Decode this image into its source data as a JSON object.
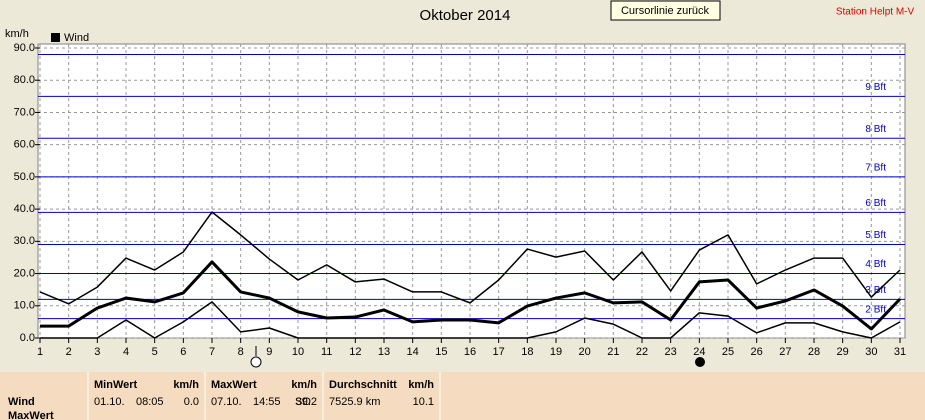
{
  "chart_data": {
    "type": "line",
    "title": "Oktober 2014",
    "button": "Cursorlinie zurück",
    "station": "Station Helpt M-V",
    "y_label": "km/h",
    "x": [
      1,
      2,
      3,
      4,
      5,
      6,
      7,
      8,
      9,
      10,
      11,
      12,
      13,
      14,
      15,
      16,
      17,
      18,
      19,
      20,
      21,
      22,
      23,
      24,
      25,
      26,
      27,
      28,
      29,
      30,
      31
    ],
    "xlim": [
      1,
      31
    ],
    "xticks": [
      1,
      2,
      3,
      4,
      5,
      6,
      7,
      8,
      9,
      10,
      11,
      12,
      13,
      14,
      15,
      16,
      17,
      18,
      19,
      20,
      21,
      22,
      23,
      24,
      25,
      26,
      27,
      28,
      29,
      30,
      31
    ],
    "ylim": [
      0,
      90
    ],
    "yticks": [
      {
        "value": 0,
        "label": "0.0"
      },
      {
        "value": 10,
        "label": "10.0"
      },
      {
        "value": 20,
        "label": "20.0"
      },
      {
        "value": 30,
        "label": "30.0"
      },
      {
        "value": 40,
        "label": "40.0"
      },
      {
        "value": 50,
        "label": "50.0"
      },
      {
        "value": 60,
        "label": "60.0"
      },
      {
        "value": 70,
        "label": "70.0"
      },
      {
        "value": 80,
        "label": "80.0"
      },
      {
        "value": 90,
        "label": "90.0"
      }
    ],
    "grid": true,
    "beaufort_color": "#0000c8",
    "beaufort": [
      {
        "value": 6,
        "label": "2 Bft"
      },
      {
        "value": 12,
        "label": "3 Bft"
      },
      {
        "value": 20,
        "label": "4 Bft"
      },
      {
        "value": 29,
        "label": "5 Bft"
      },
      {
        "value": 39,
        "label": "6 Bft"
      },
      {
        "value": 50,
        "label": "7 Bft"
      },
      {
        "value": 62,
        "label": "8 Bft"
      },
      {
        "value": 75,
        "label": "9 Bft"
      },
      {
        "value": 88,
        "label": null
      }
    ],
    "series": [
      {
        "color": "#000000",
        "line_width": 1.5,
        "values": [
          14.3,
          10.6,
          15.8,
          24.8,
          21.1,
          26.7,
          39.1,
          32,
          24.5,
          18,
          22.7,
          17.4,
          18.3,
          14.3,
          14.3,
          10.9,
          18,
          27.6,
          25.1,
          27,
          18,
          26.7,
          14.6,
          27.3,
          32,
          16.8,
          21.1,
          24.8,
          24.8,
          12.7,
          21.1
        ]
      },
      {
        "name": "Wind",
        "color": "#000000",
        "line_width": 3,
        "values": [
          3.7,
          3.7,
          9.3,
          12.4,
          11.2,
          14,
          23.6,
          14.3,
          12.4,
          8.1,
          6.2,
          6.5,
          8.7,
          5,
          5.6,
          5.6,
          4.7,
          9.9,
          12.4,
          14,
          10.9,
          11.2,
          5.6,
          17.4,
          18,
          9.3,
          11.5,
          14.9,
          9.9,
          2.8,
          12.1
        ]
      },
      {
        "color": "#000000",
        "line_width": 1.5,
        "values": [
          0,
          0,
          0,
          5.6,
          0,
          5,
          11.2,
          1.9,
          3.1,
          0,
          0,
          0,
          0,
          0,
          0,
          0,
          0,
          0,
          1.9,
          6.2,
          4.3,
          0,
          0,
          7.8,
          6.8,
          1.6,
          4.7,
          4.7,
          1.9,
          0,
          5
        ]
      }
    ]
  },
  "stats": {
    "row_labels": [
      "Wind",
      "MaxWert"
    ],
    "columns": [
      {
        "header": "MinWert",
        "unit": "km/h",
        "cells": [
          "01.10.",
          "08:05",
          "0.0"
        ]
      },
      {
        "header": "MaxWert",
        "unit": "km/h",
        "cells": [
          "07.10.",
          "14:55",
          "SO",
          "39.2"
        ]
      },
      {
        "header": "Durchschnitt",
        "unit": "km/h",
        "cells": [
          "7525.9 km",
          "10.1"
        ]
      }
    ]
  }
}
